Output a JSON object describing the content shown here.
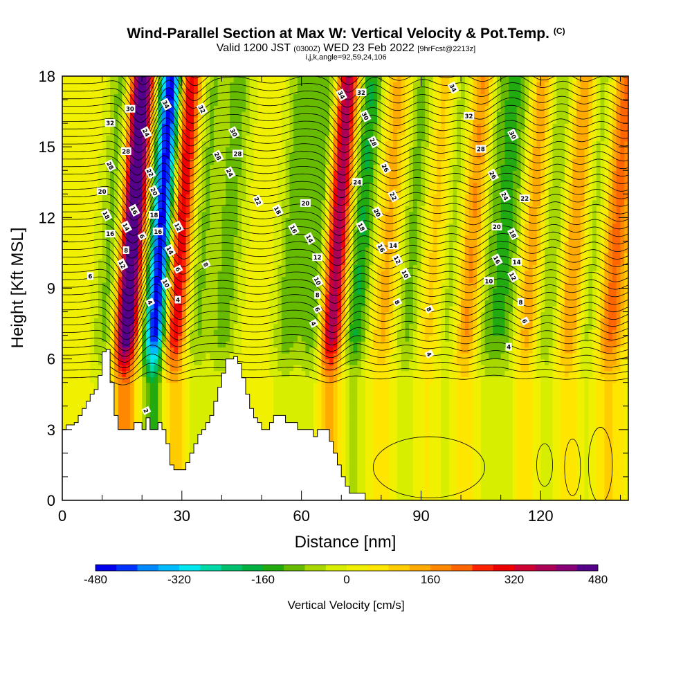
{
  "header": {
    "title": "Wind-Parallel Section at Max W: Vertical Velocity & Pot.Temp.",
    "title_units": "(C)",
    "valid_prefix": "Valid 1200 JST",
    "valid_utc": "(0300Z)",
    "valid_date": "WED 23 Feb 2022",
    "forecast": "[9hrFcst@2213z]",
    "indices": "i,j,k,angle=92,59,24,106"
  },
  "chart_data": {
    "type": "heatmap",
    "xlabel": "Distance [nm]",
    "ylabel": "Height [Kft MSL]",
    "xlim": [
      0,
      142
    ],
    "ylim": [
      0,
      18
    ],
    "x_ticks": [
      0,
      30,
      60,
      90,
      120
    ],
    "y_ticks": [
      0,
      3,
      6,
      9,
      12,
      15,
      18
    ],
    "colorbar": {
      "label": "Vertical Velocity [cm/s]",
      "range": [
        -480,
        480
      ],
      "ticks": [
        "-480",
        "-320",
        "-160",
        "0",
        "160",
        "320",
        "480"
      ],
      "colors": [
        "#0000ee",
        "#0033ff",
        "#0088ff",
        "#00bbff",
        "#00e5ee",
        "#00d8a8",
        "#00c070",
        "#00b040",
        "#22aa11",
        "#66bb00",
        "#a8d800",
        "#d8ee00",
        "#f0f000",
        "#ffe600",
        "#ffcc00",
        "#ffaa00",
        "#ff8800",
        "#ff6600",
        "#ff2200",
        "#ee0000",
        "#cc0033",
        "#aa0055",
        "#880077",
        "#550088"
      ]
    },
    "terrain_top_kft": [
      [
        0,
        3.0
      ],
      [
        1,
        3.2
      ],
      [
        3,
        3.3
      ],
      [
        4,
        3.6
      ],
      [
        5,
        3.9
      ],
      [
        6,
        4.2
      ],
      [
        7,
        4.5
      ],
      [
        8,
        4.7
      ],
      [
        9,
        5.3
      ],
      [
        10,
        6.3
      ],
      [
        11,
        6.4
      ],
      [
        12,
        5.0
      ],
      [
        13,
        3.6
      ],
      [
        14,
        3.0
      ],
      [
        17,
        3.0
      ],
      [
        18,
        3.3
      ],
      [
        20,
        3.0
      ],
      [
        21,
        3.5
      ],
      [
        22,
        3.0
      ],
      [
        24,
        3.3
      ],
      [
        25,
        3.0
      ],
      [
        26,
        2.4
      ],
      [
        27,
        1.5
      ],
      [
        28,
        1.3
      ],
      [
        30,
        1.3
      ],
      [
        31,
        1.6
      ],
      [
        32,
        2.0
      ],
      [
        33,
        2.4
      ],
      [
        34,
        2.8
      ],
      [
        35,
        3.0
      ],
      [
        36,
        3.3
      ],
      [
        37,
        3.6
      ],
      [
        38,
        4.2
      ],
      [
        39,
        4.8
      ],
      [
        40,
        5.4
      ],
      [
        41,
        6.0
      ],
      [
        43,
        6.1
      ],
      [
        44,
        5.8
      ],
      [
        45,
        5.2
      ],
      [
        46,
        4.5
      ],
      [
        47,
        3.9
      ],
      [
        48,
        3.5
      ],
      [
        49,
        3.3
      ],
      [
        50,
        3.0
      ],
      [
        51,
        3.0
      ],
      [
        52,
        3.3
      ],
      [
        53,
        3.6
      ],
      [
        55,
        3.6
      ],
      [
        56,
        3.3
      ],
      [
        58,
        3.3
      ],
      [
        59,
        3.0
      ],
      [
        62,
        3.0
      ],
      [
        63,
        2.7
      ],
      [
        64,
        3.0
      ],
      [
        66,
        3.0
      ],
      [
        67,
        2.5
      ],
      [
        68,
        2.0
      ],
      [
        69,
        1.5
      ],
      [
        70,
        1.0
      ],
      [
        71,
        0.6
      ],
      [
        72,
        0.3
      ],
      [
        75,
        0.3
      ],
      [
        76,
        0.0
      ],
      [
        142,
        0.0
      ]
    ],
    "w_features": [
      {
        "x": 15.5,
        "w": 540
      },
      {
        "x": 23.0,
        "w": -520
      },
      {
        "x": 27.5,
        "w": 360
      },
      {
        "x": 11.0,
        "w": -140
      },
      {
        "x": 33.0,
        "w": -110
      },
      {
        "x": 40.0,
        "w": -120
      },
      {
        "x": 56.0,
        "w": -130
      },
      {
        "x": 63.0,
        "w": -170
      },
      {
        "x": 67.0,
        "w": 420
      },
      {
        "x": 73.0,
        "w": -190
      },
      {
        "x": 80.0,
        "w": 120
      },
      {
        "x": 86.0,
        "w": -120
      },
      {
        "x": 92.0,
        "w": 100
      },
      {
        "x": 96.0,
        "w": -110
      },
      {
        "x": 101.0,
        "w": 170
      },
      {
        "x": 106.0,
        "w": -120
      },
      {
        "x": 111.0,
        "w": -130
      },
      {
        "x": 116.0,
        "w": 150
      },
      {
        "x": 121.0,
        "w": -120
      },
      {
        "x": 127.0,
        "w": 170
      },
      {
        "x": 131.0,
        "w": -110
      },
      {
        "x": 137.0,
        "w": 200
      }
    ],
    "theta_contour_labels": [
      {
        "x": 17,
        "y": 16.6,
        "text": "30"
      },
      {
        "x": 26,
        "y": 16.8,
        "text": "34"
      },
      {
        "x": 35,
        "y": 16.6,
        "text": "32"
      },
      {
        "x": 12,
        "y": 16.0,
        "text": "32"
      },
      {
        "x": 21,
        "y": 15.6,
        "text": "24"
      },
      {
        "x": 43,
        "y": 15.6,
        "text": "30"
      },
      {
        "x": 16,
        "y": 14.8,
        "text": "28"
      },
      {
        "x": 12,
        "y": 14.2,
        "text": "28"
      },
      {
        "x": 39,
        "y": 14.6,
        "text": "28"
      },
      {
        "x": 44,
        "y": 14.7,
        "text": "28"
      },
      {
        "x": 22,
        "y": 13.9,
        "text": "22"
      },
      {
        "x": 42,
        "y": 13.9,
        "text": "24"
      },
      {
        "x": 10,
        "y": 13.1,
        "text": "20"
      },
      {
        "x": 23,
        "y": 13.1,
        "text": "20"
      },
      {
        "x": 49,
        "y": 12.7,
        "text": "22"
      },
      {
        "x": 61,
        "y": 12.6,
        "text": "20"
      },
      {
        "x": 11,
        "y": 12.1,
        "text": "18"
      },
      {
        "x": 18,
        "y": 12.3,
        "text": "16"
      },
      {
        "x": 23,
        "y": 12.1,
        "text": "18"
      },
      {
        "x": 54,
        "y": 12.3,
        "text": "18"
      },
      {
        "x": 16,
        "y": 11.6,
        "text": "14"
      },
      {
        "x": 24,
        "y": 11.4,
        "text": "16"
      },
      {
        "x": 29,
        "y": 11.6,
        "text": "12"
      },
      {
        "x": 58,
        "y": 11.5,
        "text": "16"
      },
      {
        "x": 12,
        "y": 11.3,
        "text": "16"
      },
      {
        "x": 20,
        "y": 11.2,
        "text": "6"
      },
      {
        "x": 62,
        "y": 11.1,
        "text": "14"
      },
      {
        "x": 16,
        "y": 10.6,
        "text": "8"
      },
      {
        "x": 27,
        "y": 10.6,
        "text": "14"
      },
      {
        "x": 15,
        "y": 10.0,
        "text": "12"
      },
      {
        "x": 64,
        "y": 10.3,
        "text": "12"
      },
      {
        "x": 36,
        "y": 10.0,
        "text": "8"
      },
      {
        "x": 29,
        "y": 9.8,
        "text": "6"
      },
      {
        "x": 7,
        "y": 9.5,
        "text": "6"
      },
      {
        "x": 64,
        "y": 9.3,
        "text": "10"
      },
      {
        "x": 26,
        "y": 9.2,
        "text": "10"
      },
      {
        "x": 64,
        "y": 8.7,
        "text": "8"
      },
      {
        "x": 64,
        "y": 8.1,
        "text": "6"
      },
      {
        "x": 22,
        "y": 8.4,
        "text": "4"
      },
      {
        "x": 29,
        "y": 8.5,
        "text": "4"
      },
      {
        "x": 63,
        "y": 7.5,
        "text": "4"
      },
      {
        "x": 70,
        "y": 17.2,
        "text": "34"
      },
      {
        "x": 75,
        "y": 17.3,
        "text": "32"
      },
      {
        "x": 98,
        "y": 17.5,
        "text": "34"
      },
      {
        "x": 76,
        "y": 16.3,
        "text": "30"
      },
      {
        "x": 102,
        "y": 16.3,
        "text": "32"
      },
      {
        "x": 113,
        "y": 15.5,
        "text": "30"
      },
      {
        "x": 78,
        "y": 15.2,
        "text": "28"
      },
      {
        "x": 105,
        "y": 14.9,
        "text": "28"
      },
      {
        "x": 81,
        "y": 14.1,
        "text": "26"
      },
      {
        "x": 108,
        "y": 13.8,
        "text": "26"
      },
      {
        "x": 74,
        "y": 13.5,
        "text": "24"
      },
      {
        "x": 83,
        "y": 12.9,
        "text": "22"
      },
      {
        "x": 111,
        "y": 12.9,
        "text": "24"
      },
      {
        "x": 116,
        "y": 12.8,
        "text": "22"
      },
      {
        "x": 79,
        "y": 12.2,
        "text": "20"
      },
      {
        "x": 75,
        "y": 11.6,
        "text": "18"
      },
      {
        "x": 109,
        "y": 11.6,
        "text": "20"
      },
      {
        "x": 113,
        "y": 11.3,
        "text": "18"
      },
      {
        "x": 80,
        "y": 10.7,
        "text": "16"
      },
      {
        "x": 83,
        "y": 10.8,
        "text": "14"
      },
      {
        "x": 84,
        "y": 10.2,
        "text": "12"
      },
      {
        "x": 109,
        "y": 10.2,
        "text": "16"
      },
      {
        "x": 114,
        "y": 10.1,
        "text": "14"
      },
      {
        "x": 86,
        "y": 9.6,
        "text": "10"
      },
      {
        "x": 113,
        "y": 9.5,
        "text": "12"
      },
      {
        "x": 107,
        "y": 9.3,
        "text": "10"
      },
      {
        "x": 84,
        "y": 8.4,
        "text": "8"
      },
      {
        "x": 92,
        "y": 8.1,
        "text": "8"
      },
      {
        "x": 115,
        "y": 8.4,
        "text": "8"
      },
      {
        "x": 116,
        "y": 7.6,
        "text": "6"
      },
      {
        "x": 92,
        "y": 6.2,
        "text": "4"
      },
      {
        "x": 112,
        "y": 6.5,
        "text": "4"
      },
      {
        "x": 21,
        "y": 3.8,
        "text": "2"
      }
    ]
  }
}
